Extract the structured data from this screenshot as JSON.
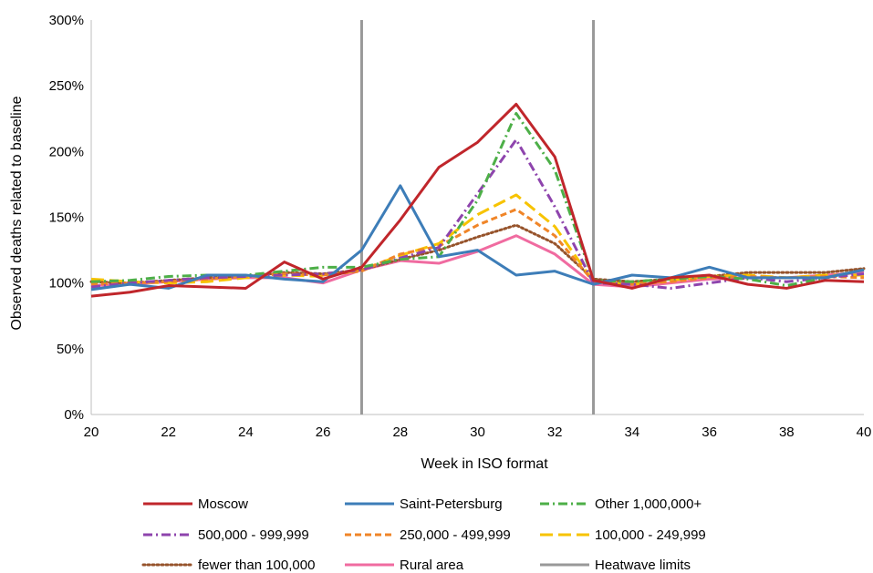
{
  "chart_data": {
    "type": "line",
    "xlabel": "Week in ISO format",
    "ylabel": "Observed deaths related to baseline",
    "xlim": [
      20,
      40
    ],
    "ylim": [
      0,
      300
    ],
    "x_ticks": [
      20,
      22,
      24,
      26,
      28,
      30,
      32,
      34,
      36,
      38,
      40
    ],
    "x_tick_labels": [
      "20",
      "22",
      "24",
      "26",
      "28",
      "30",
      "32",
      "34",
      "36",
      "38",
      "40"
    ],
    "y_ticks": [
      0,
      50,
      100,
      150,
      200,
      250,
      300
    ],
    "y_tick_labels": [
      "0%",
      "50%",
      "100%",
      "150%",
      "200%",
      "250%",
      "300%"
    ],
    "y_unit": "%",
    "grid": false,
    "legend_position": "bottom",
    "heatwave_limits": {
      "name": "Heatwave limits",
      "x": [
        27,
        33
      ],
      "color": "#999999"
    },
    "x": [
      20,
      21,
      22,
      23,
      24,
      25,
      26,
      27,
      28,
      29,
      30,
      31,
      32,
      33,
      34,
      35,
      36,
      37,
      38,
      39,
      40
    ],
    "series": [
      {
        "name": "Moscow",
        "color": "#c0262b",
        "style": "solid",
        "values": [
          90,
          93,
          98,
          97,
          96,
          116,
          103,
          112,
          148,
          188,
          207,
          236,
          196,
          102,
          96,
          104,
          106,
          99,
          96,
          102,
          101
        ]
      },
      {
        "name": "Saint-Petersburg",
        "color": "#3d7db8",
        "style": "solid",
        "values": [
          95,
          99,
          96,
          106,
          106,
          103,
          101,
          125,
          174,
          120,
          125,
          106,
          109,
          99,
          106,
          104,
          112,
          104,
          104,
          104,
          110
        ]
      },
      {
        "name": "Other 1,000,000+",
        "color": "#4daf48",
        "style": "dashdot",
        "values": [
          101,
          102,
          105,
          106,
          106,
          109,
          112,
          112,
          118,
          120,
          163,
          229,
          186,
          102,
          101,
          103,
          105,
          103,
          98,
          104,
          110
        ]
      },
      {
        "name": "500,000 - 999,999",
        "color": "#8e44ad",
        "style": "dashdot",
        "values": [
          97,
          100,
          102,
          104,
          105,
          106,
          107,
          110,
          119,
          127,
          168,
          209,
          158,
          100,
          99,
          96,
          100,
          104,
          101,
          104,
          107
        ]
      },
      {
        "name": "250,000 - 499,999",
        "color": "#f08528",
        "style": "dash",
        "values": [
          99,
          100,
          101,
          103,
          105,
          107,
          106,
          109,
          122,
          128,
          144,
          156,
          136,
          101,
          99,
          101,
          104,
          105,
          104,
          105,
          104
        ]
      },
      {
        "name": "100,000 - 249,999",
        "color": "#f7c300",
        "style": "longdash",
        "values": [
          103,
          101,
          100,
          101,
          104,
          106,
          105,
          110,
          121,
          130,
          152,
          167,
          143,
          101,
          99,
          102,
          105,
          106,
          104,
          106,
          106
        ]
      },
      {
        "name": "fewer than 100,000",
        "color": "#96532b",
        "style": "dotted",
        "values": [
          101,
          100,
          102,
          104,
          105,
          108,
          107,
          110,
          118,
          125,
          135,
          144,
          130,
          103,
          101,
          103,
          105,
          108,
          108,
          108,
          111
        ]
      },
      {
        "name": "Rural area",
        "color": "#f06ba0",
        "style": "solid",
        "values": [
          98,
          99,
          101,
          103,
          104,
          104,
          100,
          110,
          117,
          115,
          124,
          136,
          122,
          99,
          97,
          100,
          103,
          104,
          104,
          106,
          108
        ]
      }
    ]
  }
}
